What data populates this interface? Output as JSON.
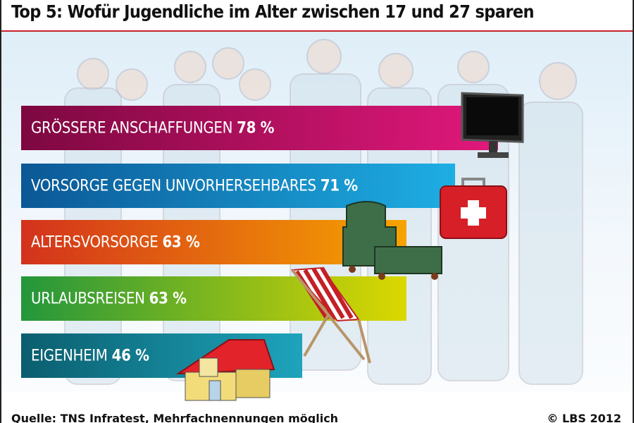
{
  "chart_data": {
    "type": "bar",
    "orientation": "horizontal",
    "title": "Top 5: Wofür Jugendliche im Alter zwischen 17 und 27 sparen",
    "categories": [
      "GRÖSSERE ANSCHAFFUNGEN",
      "VORSORGE GEGEN UNVORHERSEHBARES",
      "ALTERSVORSORGE",
      "URLAUBSREISEN",
      "EIGENHEIM"
    ],
    "values": [
      78,
      71,
      63,
      63,
      46
    ],
    "value_labels": [
      "78 %",
      "71 %",
      "63 %",
      "63 %",
      "46 %"
    ],
    "unit": "%",
    "xlim": [
      0,
      100
    ],
    "grid": false,
    "bar_colors": [
      [
        "#7d0840",
        "#e2187c"
      ],
      [
        "#0b5896",
        "#1eaee4"
      ],
      [
        "#d3321c",
        "#f6a400"
      ],
      [
        "#23963c",
        "#dcd800"
      ],
      [
        "#0a5e6e",
        "#1ea4bc"
      ]
    ],
    "icons": [
      "monitor-icon",
      "first-aid-kit-icon",
      "armchair-icon",
      "deck-chair-icon",
      "house-icon"
    ]
  },
  "footer": {
    "source": "Quelle: TNS Infratest, Mehrfachnennungen möglich",
    "copyright": "© LBS 2012"
  },
  "colors": {
    "rule": "#c8222a"
  }
}
